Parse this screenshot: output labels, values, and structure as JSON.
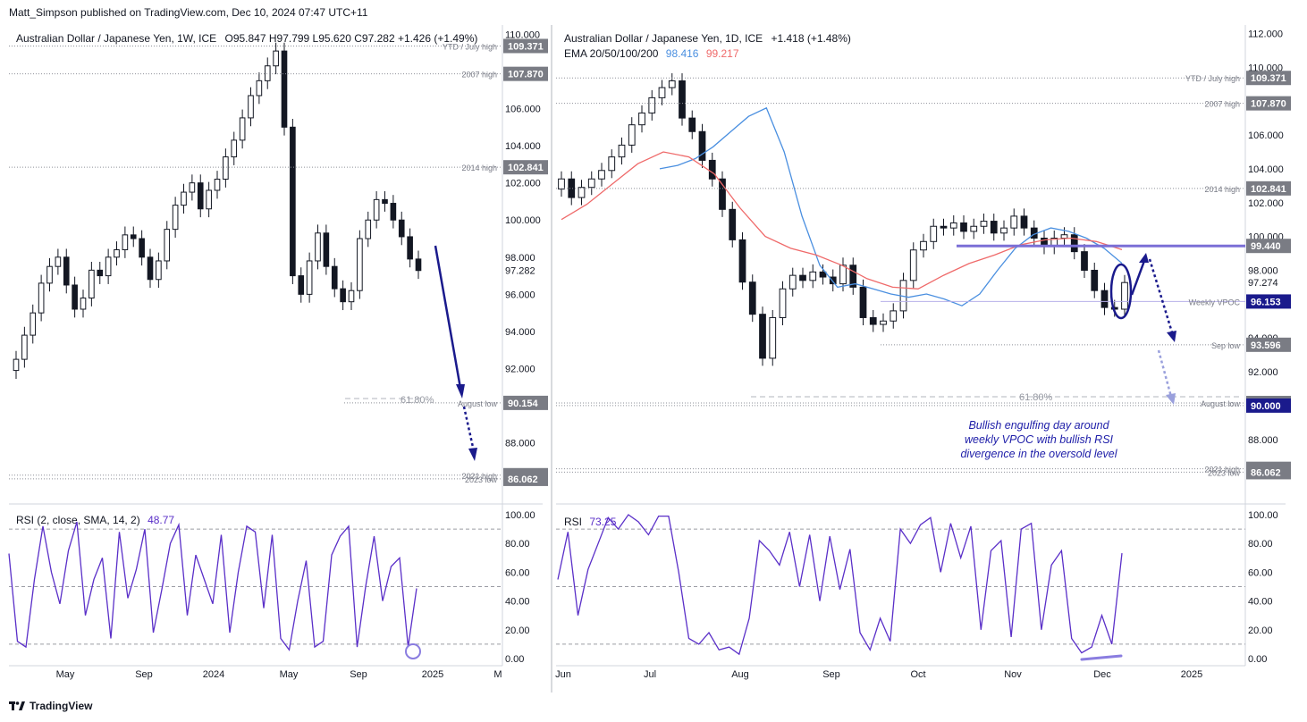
{
  "header": {
    "publisher": "Matt_Simpson published on TradingView.com, Dec 10, 2024 07:47 UTC+11"
  },
  "footer": {
    "brand": "TradingView",
    "logo": "tradingview-logo-icon"
  },
  "left_chart": {
    "title": "Australian Dollar / Japanese Yen, 1W, ICE",
    "ohlc": "O95.847  H97.799  L95.620  C97.282  +1.426 (+1.49%)",
    "rsi_label": "RSI (2, close, SMA, 14, 2)",
    "rsi_value": "48.77",
    "fib_label": "61.80%",
    "levels": [
      {
        "label": "YTD / July high",
        "price": "109.371"
      },
      {
        "label": "2007 high",
        "price": "107.870"
      },
      {
        "label": "2014 high",
        "price": "102.841"
      },
      {
        "label": "August low",
        "price": "90.154"
      },
      {
        "label": "2021 high",
        "price": "86.261"
      },
      {
        "label": "2023 low",
        "price": "86.062"
      }
    ],
    "last_price": "97.282"
  },
  "right_chart": {
    "title": "Australian Dollar / Japanese Yen, 1D, ICE",
    "change": "+1.418 (+1.48%)",
    "ema_label": "EMA 20/50/100/200",
    "ema_fast_value": "98.416",
    "ema_slow_value": "99.217",
    "rsi_label": "RSI",
    "rsi_value": "73.25",
    "fib_label": "61.80%",
    "annotation": [
      "Bullish engulfing day around",
      "weekly VPOC with bullish RSI",
      "divergence in the oversold level"
    ],
    "levels": [
      {
        "label": "YTD / July high",
        "price": "109.371"
      },
      {
        "label": "2007 high",
        "price": "107.870"
      },
      {
        "label": "2014 high",
        "price": "102.841"
      },
      {
        "label": "",
        "price": "99.440"
      },
      {
        "label": "Weekly VPOC",
        "price": "96.153"
      },
      {
        "label": "Sep low",
        "price": "93.596"
      },
      {
        "label": "August low",
        "price": "90.154"
      },
      {
        "label": "",
        "price": "90.000"
      },
      {
        "label": "2021 high",
        "price": "86.261"
      },
      {
        "label": "2023 low",
        "price": "86.062"
      }
    ],
    "last_price": "97.274"
  },
  "colors": {
    "candle": "#131722",
    "ema_fast": "#4a8fe0",
    "ema_slow": "#ef6a6a",
    "rsi": "#5a2fc8",
    "arrow": "#1a1a8c",
    "resistance": "#7b6fd6"
  },
  "chart_data": [
    {
      "type": "candlestick",
      "title": "Australian Dollar / Japanese Yen, 1W, ICE",
      "ylim": [
        85,
        110.5
      ],
      "yticks": [
        88,
        90,
        92,
        94,
        96,
        98,
        100,
        102,
        104,
        106,
        108,
        110
      ],
      "x_ticks": [
        "May",
        "Sep",
        "2024",
        "May",
        "Sep",
        "2025",
        "M"
      ],
      "series": [
        {
          "name": "AUD/JPY weekly close",
          "values": [
            92.5,
            93.8,
            95.0,
            96.6,
            97.5,
            98.0,
            96.5,
            95.2,
            95.8,
            97.3,
            97.0,
            98.0,
            98.4,
            99.2,
            99.0,
            98.0,
            96.8,
            97.8,
            99.5,
            100.8,
            101.5,
            102.0,
            100.6,
            101.6,
            102.2,
            103.4,
            104.3,
            105.5,
            106.7,
            107.5,
            108.3,
            109.1,
            105.0,
            97.0,
            96.0,
            97.8,
            99.3,
            97.5,
            96.3,
            95.6,
            96.2,
            99.0,
            100.0,
            101.1,
            100.9,
            100.0,
            99.1,
            97.9,
            97.282
          ]
        }
      ]
    },
    {
      "type": "line",
      "title": "RSI (2, close, SMA, 14, 2)",
      "ylim": [
        0,
        100
      ],
      "yticks": [
        0,
        20,
        40,
        60,
        80,
        100
      ],
      "series": [
        {
          "name": "RSI",
          "values": [
            73,
            12,
            8,
            55,
            92,
            60,
            38,
            75,
            95,
            30,
            55,
            70,
            14,
            88,
            42,
            62,
            90,
            18,
            48,
            80,
            93,
            30,
            72,
            55,
            38,
            86,
            18,
            60,
            92,
            88,
            35,
            86,
            14,
            6,
            40,
            68,
            8,
            12,
            72,
            85,
            92,
            8,
            50,
            85,
            40,
            64,
            70,
            8,
            48.77
          ]
        }
      ]
    },
    {
      "type": "candlestick",
      "title": "Australian Dollar / Japanese Yen, 1D, ICE",
      "ylim": [
        84.5,
        112.5
      ],
      "yticks": [
        88,
        90,
        92,
        94,
        96,
        98,
        100,
        102,
        104,
        106,
        108,
        110,
        112
      ],
      "x_ticks": [
        "Jun",
        "Jul",
        "Aug",
        "Sep",
        "Oct",
        "Nov",
        "Dec",
        "2025"
      ],
      "series": [
        {
          "name": "AUD/JPY daily close",
          "values": [
            103.4,
            102.3,
            102.9,
            103.4,
            103.9,
            104.7,
            105.4,
            106.6,
            107.3,
            108.2,
            108.8,
            109.2,
            107.0,
            106.2,
            104.5,
            103.4,
            101.6,
            99.8,
            97.3,
            95.4,
            92.8,
            95.2,
            96.9,
            97.7,
            97.4,
            97.9,
            97.6,
            97.2,
            98.3,
            97.0,
            95.2,
            94.8,
            95.0,
            95.6,
            97.4,
            99.2,
            99.7,
            100.6,
            100.5,
            100.8,
            100.3,
            100.6,
            100.9,
            100.2,
            100.5,
            101.2,
            100.5,
            99.9,
            99.4,
            99.9,
            100.1,
            99.1,
            98.0,
            96.8,
            95.8,
            95.7,
            97.274
          ]
        },
        {
          "name": "EMA fast",
          "values": [
            104.0,
            104.2,
            104.6,
            105.3,
            106.2,
            107.1,
            107.6,
            105.0,
            101.2,
            98.3,
            97.0,
            97.2,
            96.9,
            96.6,
            96.4,
            96.6,
            96.3,
            95.9,
            96.6,
            98.0,
            99.3,
            100.1,
            100.5,
            100.3,
            99.9,
            99.3,
            98.416
          ]
        },
        {
          "name": "EMA slow",
          "values": [
            101.0,
            101.9,
            103.1,
            104.3,
            105.0,
            104.7,
            103.7,
            101.7,
            100.0,
            99.3,
            98.9,
            98.3,
            97.5,
            97.0,
            96.9,
            97.7,
            98.4,
            98.9,
            99.5,
            99.8,
            99.9,
            99.7,
            99.217
          ]
        }
      ]
    },
    {
      "type": "line",
      "title": "RSI",
      "ylim": [
        0,
        100
      ],
      "yticks": [
        0,
        20,
        40,
        60,
        80,
        100
      ],
      "series": [
        {
          "name": "RSI",
          "values": [
            55,
            88,
            30,
            62,
            80,
            98,
            90,
            100,
            95,
            86,
            99,
            99,
            60,
            14,
            10,
            18,
            6,
            8,
            3,
            28,
            82,
            75,
            65,
            88,
            50,
            86,
            40,
            85,
            48,
            76,
            18,
            6,
            28,
            12,
            90,
            80,
            93,
            98,
            60,
            94,
            70,
            92,
            20,
            75,
            82,
            15,
            90,
            94,
            20,
            65,
            75,
            14,
            4,
            8,
            30,
            10,
            73.25
          ]
        }
      ]
    }
  ]
}
